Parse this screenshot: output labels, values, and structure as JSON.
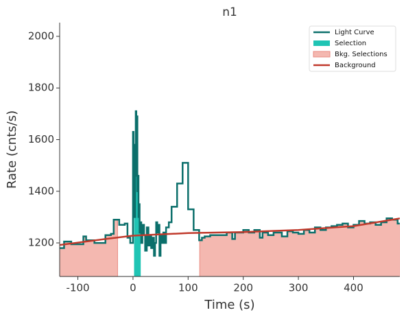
{
  "chart_data": {
    "type": "step",
    "title": "n1",
    "xlabel": "Time (s)",
    "ylabel": "Rate (cnts/s)",
    "xlim": [
      -133,
      484
    ],
    "ylim": [
      1070,
      2053
    ],
    "xticks": [
      -100,
      0,
      100,
      200,
      300,
      400
    ],
    "yticks": [
      1200,
      1400,
      1600,
      1800,
      2000
    ],
    "legend": "upper right",
    "series": [
      {
        "name": "Light Curve",
        "color": "#0b6f6b",
        "x": [
          -133,
          -125,
          -112,
          -95,
          -90,
          -85,
          -70,
          -60,
          -50,
          -40,
          -35,
          -25,
          -15,
          -10,
          -5,
          0,
          1,
          2,
          3,
          4,
          5,
          6,
          7,
          8,
          9,
          10,
          11,
          12,
          13,
          15,
          17,
          20,
          22,
          25,
          28,
          30,
          33,
          35,
          38,
          40,
          42,
          44,
          46,
          48,
          50,
          53,
          55,
          57,
          60,
          65,
          70,
          80,
          90,
          100,
          110,
          120,
          125,
          130,
          140,
          150,
          160,
          170,
          180,
          185,
          195,
          200,
          210,
          220,
          230,
          235,
          245,
          255,
          270,
          280,
          290,
          300,
          310,
          320,
          330,
          340,
          350,
          360,
          370,
          380,
          390,
          400,
          410,
          420,
          430,
          440,
          450,
          460,
          470,
          480
        ],
        "values": [
          1180,
          1205,
          1195,
          1195,
          1225,
          1210,
          1200,
          1200,
          1230,
          1235,
          1290,
          1270,
          1275,
          1220,
          1200,
          1630,
          1350,
          1580,
          1300,
          1460,
          1710,
          1600,
          1690,
          1400,
          1460,
          1300,
          1350,
          1240,
          1280,
          1200,
          1270,
          1230,
          1170,
          1260,
          1190,
          1230,
          1180,
          1220,
          1150,
          1200,
          1280,
          1240,
          1270,
          1150,
          1230,
          1200,
          1240,
          1200,
          1260,
          1280,
          1340,
          1430,
          1510,
          1330,
          1250,
          1210,
          1220,
          1225,
          1230,
          1230,
          1230,
          1240,
          1215,
          1240,
          1240,
          1250,
          1240,
          1250,
          1220,
          1240,
          1230,
          1240,
          1225,
          1245,
          1240,
          1235,
          1250,
          1240,
          1260,
          1250,
          1260,
          1265,
          1270,
          1275,
          1260,
          1270,
          1285,
          1275,
          1280,
          1270,
          1280,
          1295,
          1290,
          1275
        ]
      },
      {
        "name": "Selection",
        "color": "#1fc4b4",
        "ranges": [
          [
            2,
            14
          ]
        ]
      },
      {
        "name": "Bkg. Selections",
        "color": "#f4b8b0",
        "ranges": [
          [
            -133,
            -28
          ],
          [
            121,
            484
          ]
        ]
      },
      {
        "name": "Background",
        "color": "#c0392b",
        "x": [
          -133,
          -50,
          0,
          100,
          200,
          300,
          400,
          484
        ],
        "values": [
          1192,
          1215,
          1228,
          1238,
          1242,
          1250,
          1265,
          1295
        ]
      }
    ]
  }
}
